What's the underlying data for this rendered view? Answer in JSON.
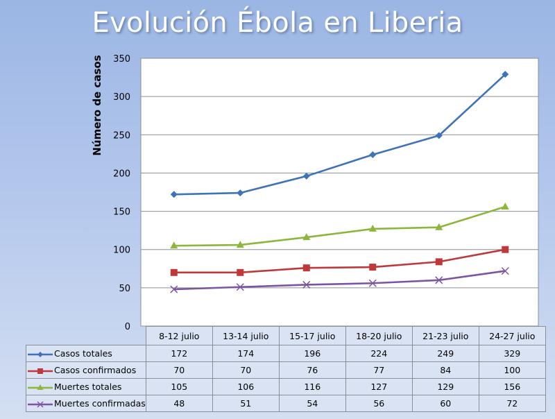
{
  "title": "Evolución Ébola en Liberia",
  "chart_data": {
    "type": "line",
    "title": "Evolución Ébola en Liberia",
    "xlabel": "",
    "ylabel": "Número de casos",
    "ylim": [
      0,
      350
    ],
    "yticks": [
      0,
      50,
      100,
      150,
      200,
      250,
      300,
      350
    ],
    "grid": true,
    "legend": "data-table-below",
    "categories": [
      "8-12 julio",
      "13-14 julio",
      "15-17 julio",
      "18-20 julio",
      "21-23 julio",
      "24-27 julio"
    ],
    "series": [
      {
        "name": "Casos totales",
        "values": [
          172,
          174,
          196,
          224,
          249,
          329
        ],
        "color": "#3f73b8",
        "marker": "diamond"
      },
      {
        "name": "Casos confirmados",
        "values": [
          70,
          70,
          76,
          77,
          84,
          100
        ],
        "color": "#c0393a",
        "marker": "square"
      },
      {
        "name": "Muertes totales",
        "values": [
          105,
          106,
          116,
          127,
          129,
          156
        ],
        "color": "#8db63c",
        "marker": "triangle"
      },
      {
        "name": "Muertes confirmadas",
        "values": [
          48,
          51,
          54,
          56,
          60,
          72
        ],
        "color": "#7c55a2",
        "marker": "x"
      }
    ]
  }
}
